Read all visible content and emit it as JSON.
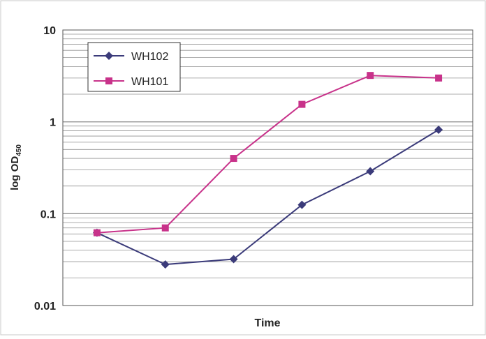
{
  "chart_data": {
    "type": "line",
    "xlabel": "Time",
    "ylabel": "log OD",
    "ylabel_sub": "450",
    "yscale": "log",
    "ylim": [
      0.01,
      10
    ],
    "y_ticks": [
      {
        "value": 10,
        "label": "10"
      },
      {
        "value": 1,
        "label": "1"
      },
      {
        "value": 0.1,
        "label": "0.1"
      },
      {
        "value": 0.01,
        "label": "0.01"
      }
    ],
    "x_tick_labels_shown": false,
    "grid": "horizontal-minor",
    "legend": "top-left",
    "points_count": 6,
    "series": [
      {
        "name": "WH102",
        "color": "#3b3b7a",
        "marker": "diamond",
        "values": [
          0.062,
          0.028,
          0.032,
          0.125,
          0.29,
          0.82
        ]
      },
      {
        "name": "WH101",
        "color": "#c8328a",
        "marker": "square",
        "values": [
          0.062,
          0.07,
          0.4,
          1.55,
          3.2,
          3.0
        ]
      }
    ],
    "colors": {
      "background": "#ffffff",
      "plot_background": "#ffffff",
      "grid": "#909090",
      "axis": "#333333",
      "text": "#222222"
    }
  }
}
